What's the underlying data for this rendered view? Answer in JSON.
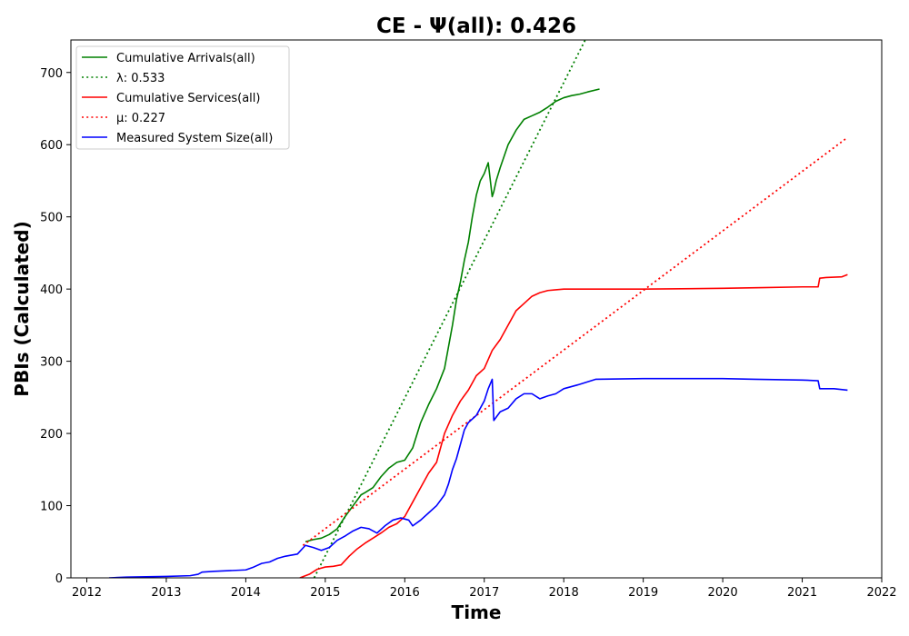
{
  "chart_data": {
    "type": "line",
    "title": "CE -  Ψ(all): 0.426",
    "xlabel": "Time",
    "ylabel": "PBIs (Calculated)",
    "xlim": [
      2011.8,
      2022.0
    ],
    "ylim": [
      0,
      745
    ],
    "x_ticks": [
      2012,
      2013,
      2014,
      2015,
      2016,
      2017,
      2018,
      2019,
      2020,
      2021,
      2022
    ],
    "y_ticks": [
      0,
      100,
      200,
      300,
      400,
      500,
      600,
      700
    ],
    "legend_position": "top-left",
    "grid": false,
    "series": [
      {
        "name": "Cumulative Arrivals(all)",
        "style": "solid",
        "color": "#008000",
        "x": [
          2014.75,
          2014.85,
          2014.95,
          2015.05,
          2015.15,
          2015.25,
          2015.35,
          2015.45,
          2015.5,
          2015.6,
          2015.7,
          2015.8,
          2015.9,
          2016.0,
          2016.1,
          2016.2,
          2016.3,
          2016.4,
          2016.5,
          2016.55,
          2016.6,
          2016.65,
          2016.7,
          2016.75,
          2016.8,
          2016.85,
          2016.9,
          2016.95,
          2017.0,
          2017.05,
          2017.1,
          2017.12,
          2017.15,
          2017.2,
          2017.3,
          2017.4,
          2017.5,
          2017.6,
          2017.7,
          2017.8,
          2017.9,
          2018.0,
          2018.1,
          2018.2,
          2018.3,
          2018.45
        ],
        "y": [
          50,
          53,
          55,
          60,
          68,
          85,
          100,
          115,
          118,
          125,
          140,
          152,
          160,
          163,
          180,
          215,
          240,
          262,
          290,
          320,
          350,
          385,
          410,
          440,
          465,
          500,
          530,
          550,
          560,
          575,
          528,
          535,
          550,
          568,
          600,
          620,
          635,
          640,
          645,
          652,
          660,
          665,
          668,
          670,
          673,
          677
        ]
      },
      {
        "name": "λ: 0.533",
        "style": "dotted",
        "color": "#008000",
        "x": [
          2014.86,
          2018.27
        ],
        "y": [
          0,
          745
        ]
      },
      {
        "name": "Cumulative Services(all)",
        "style": "solid",
        "color": "#ff0000",
        "x": [
          2014.68,
          2014.8,
          2014.9,
          2015.0,
          2015.1,
          2015.2,
          2015.3,
          2015.4,
          2015.5,
          2015.6,
          2015.7,
          2015.8,
          2015.9,
          2016.0,
          2016.1,
          2016.2,
          2016.3,
          2016.4,
          2016.5,
          2016.6,
          2016.7,
          2016.8,
          2016.9,
          2017.0,
          2017.1,
          2017.2,
          2017.3,
          2017.4,
          2017.5,
          2017.6,
          2017.7,
          2017.8,
          2017.9,
          2018.0,
          2018.4,
          2019.0,
          2020.0,
          2020.5,
          2021.0,
          2021.2,
          2021.22,
          2021.3,
          2021.5,
          2021.57
        ],
        "y": [
          0,
          5,
          12,
          15,
          16,
          18,
          30,
          40,
          48,
          55,
          62,
          70,
          75,
          85,
          105,
          125,
          145,
          160,
          200,
          225,
          245,
          260,
          280,
          290,
          315,
          330,
          350,
          370,
          380,
          390,
          395,
          398,
          399,
          400,
          400,
          400,
          401,
          402,
          403,
          403,
          415,
          416,
          417,
          420
        ]
      },
      {
        "name": "μ: 0.227",
        "style": "dotted",
        "color": "#ff0000",
        "x": [
          2014.72,
          2021.57
        ],
        "y": [
          45,
          610
        ]
      },
      {
        "name": "Measured System Size(all)",
        "style": "solid",
        "color": "#0000ff",
        "x": [
          2012.28,
          2012.5,
          2013.0,
          2013.3,
          2013.4,
          2013.45,
          2013.6,
          2014.0,
          2014.1,
          2014.2,
          2014.3,
          2014.4,
          2014.5,
          2014.65,
          2014.75,
          2014.85,
          2014.95,
          2015.05,
          2015.15,
          2015.25,
          2015.35,
          2015.45,
          2015.55,
          2015.65,
          2015.75,
          2015.85,
          2015.95,
          2016.05,
          2016.1,
          2016.2,
          2016.3,
          2016.4,
          2016.5,
          2016.55,
          2016.6,
          2016.65,
          2016.7,
          2016.75,
          2016.8,
          2016.9,
          2017.0,
          2017.05,
          2017.1,
          2017.12,
          2017.2,
          2017.3,
          2017.4,
          2017.5,
          2017.6,
          2017.7,
          2017.8,
          2017.9,
          2018.0,
          2018.2,
          2018.4,
          2019.0,
          2020.0,
          2020.4,
          2021.0,
          2021.2,
          2021.22,
          2021.4,
          2021.57
        ],
        "y": [
          0,
          1,
          2,
          3,
          5,
          8,
          9,
          11,
          15,
          20,
          22,
          27,
          30,
          33,
          45,
          42,
          38,
          42,
          52,
          58,
          65,
          70,
          68,
          62,
          72,
          80,
          83,
          80,
          72,
          80,
          90,
          100,
          115,
          130,
          150,
          165,
          185,
          205,
          215,
          225,
          245,
          262,
          275,
          218,
          230,
          235,
          248,
          255,
          255,
          248,
          252,
          255,
          262,
          268,
          275,
          276,
          276,
          275,
          274,
          273,
          262,
          262,
          260
        ]
      }
    ]
  },
  "legend_handles": {
    "arrivals_solid": "—",
    "arrivals_dotted": "…",
    "services_solid": "—",
    "services_dotted": "…",
    "size_solid": "—"
  },
  "legend_labels": {
    "arrivals_prefix": "",
    "mu_greek": "μ",
    "lambda_greek": "λ"
  }
}
